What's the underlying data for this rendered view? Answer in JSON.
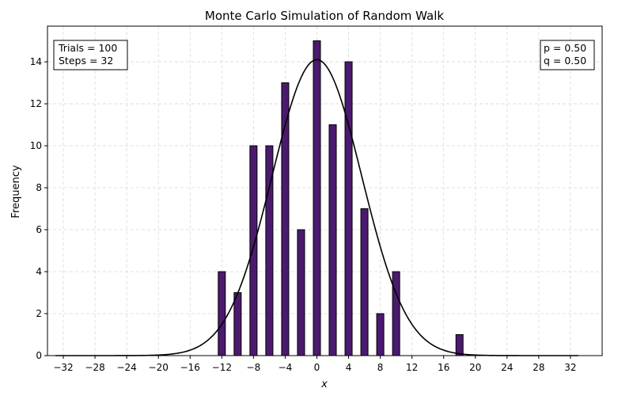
{
  "chart_data": {
    "type": "bar",
    "title": "Monte Carlo Simulation of Random Walk",
    "xlabel": "x",
    "ylabel": "Frequency",
    "xlim": [
      -34,
      36
    ],
    "ylim": [
      0,
      15.7
    ],
    "x_ticks": [
      -32,
      -28,
      -24,
      -20,
      -16,
      -12,
      -8,
      -4,
      0,
      4,
      8,
      12,
      16,
      20,
      24,
      28,
      32
    ],
    "y_ticks": [
      0,
      2,
      4,
      6,
      8,
      10,
      12,
      14
    ],
    "grid": true,
    "bar_color": "#4b1a6e",
    "bar_edge_color": "#000000",
    "curve_color": "#000000",
    "series": [
      {
        "type": "bar",
        "x": [
          -12,
          -10,
          -8,
          -6,
          -4,
          -2,
          0,
          2,
          4,
          6,
          8,
          10,
          18
        ],
        "values": [
          4,
          3,
          10,
          10,
          13,
          6,
          15,
          11,
          14,
          7,
          2,
          4,
          1
        ]
      },
      {
        "type": "line",
        "distribution": "gaussian",
        "mean": 0,
        "std": 5.66,
        "peak": 14.1,
        "x_range": [
          -33,
          33
        ]
      }
    ],
    "annotations": [
      {
        "position": "top-left",
        "lines": [
          "Trials = 100",
          "Steps = 32"
        ]
      },
      {
        "position": "top-right",
        "lines": [
          "p = 0.50",
          "q = 0.50"
        ]
      }
    ]
  }
}
